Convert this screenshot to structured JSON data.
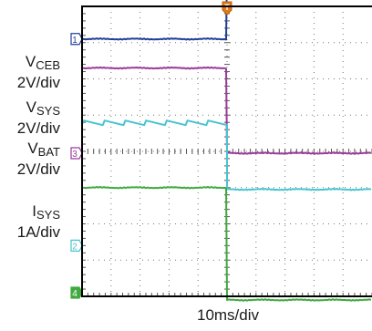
{
  "chart_data": {
    "type": "line",
    "grid": true,
    "xlabel": "10ms/div",
    "x_divisions": 10,
    "y_divisions": 8,
    "trigger_marker": "T",
    "trigger_x_div": 5.0,
    "edge_at_div": 5.0,
    "series": [
      {
        "name": "VCEB",
        "scale_label": "2V/div",
        "label_main": "V",
        "label_sub": "CEB",
        "color": "#1f3f99",
        "marker": "1",
        "marker_y_div": 7.1,
        "before_div": 7.1,
        "after_div": 9.1,
        "style": "step"
      },
      {
        "name": "VSYS",
        "scale_label": "2V/div",
        "label_main": "V",
        "label_sub": "SYS",
        "color": "#9b3a9b",
        "marker": "3",
        "marker_y_div": 3.95,
        "before_div": 6.3,
        "after_div": 3.95,
        "style": "step"
      },
      {
        "name": "VBAT",
        "scale_label": "2V/div",
        "label_main": "V",
        "label_sub": "BAT",
        "color": "#48c4d0",
        "marker": "2",
        "marker_y_div": 1.4,
        "before_div": 4.75,
        "after_div": 2.95,
        "style": "sawtooth",
        "ripple_teeth": 7
      },
      {
        "name": "ISYS",
        "scale_label": "1A/div",
        "label_main": "I",
        "label_sub": "SYS",
        "color": "#3faa3f",
        "marker": "4",
        "marker_y_div": 0.1,
        "before_div": 3.0,
        "after_div": -0.1,
        "style": "step"
      }
    ]
  }
}
